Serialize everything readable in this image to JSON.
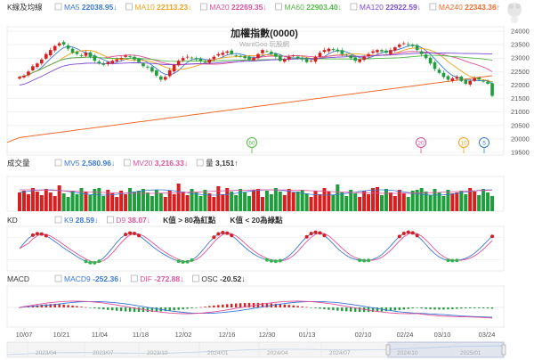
{
  "panels": {
    "price": {
      "title": "K線及均線",
      "chart_title": "加權指數(0000)",
      "watermark": "WantGoo 玩股網",
      "legend": [
        {
          "name": "MA5",
          "value": "22038.95↓",
          "color": "#3a78d4"
        },
        {
          "name": "MA10",
          "value": "22113.23↓",
          "color": "#f3a11a"
        },
        {
          "name": "MA20",
          "value": "22269.35↓",
          "color": "#e0509a"
        },
        {
          "name": "MA60",
          "value": "22903.40↓",
          "color": "#54b848"
        },
        {
          "name": "MA120",
          "value": "22922.59↓",
          "color": "#7a4bd0"
        },
        {
          "name": "MA240",
          "value": "22343.36↑",
          "color": "#f06b2d"
        }
      ],
      "y_ticks": [
        "24000",
        "23500",
        "23000",
        "22500",
        "22000",
        "21500",
        "21000",
        "20500",
        "20000",
        "19500"
      ],
      "markers": [
        "60",
        "20",
        "10",
        "5"
      ]
    },
    "volume": {
      "title": "成交量",
      "legend": [
        {
          "name": "MV5",
          "value": "2,580.96↓",
          "color": "#3a78d4"
        },
        {
          "name": "MV20",
          "value": "3,216.33↓",
          "color": "#e0509a"
        },
        {
          "name": "量",
          "value": "3,151↑",
          "color": "#333333"
        }
      ]
    },
    "kd": {
      "title": "KD",
      "legend": [
        {
          "name": "K9",
          "value": "28.59↓",
          "color": "#3a78d4"
        },
        {
          "name": "D9",
          "value": "38.07↓",
          "color": "#e0509a"
        }
      ],
      "notes": [
        "K值 > 80為紅點",
        "K值 < 20為綠點"
      ]
    },
    "macd": {
      "title": "MACD",
      "legend": [
        {
          "name": "MACD9",
          "value": "-252.36↓",
          "color": "#3a78d4"
        },
        {
          "name": "DIF",
          "value": "-272.88↓",
          "color": "#e0509a"
        },
        {
          "name": "OSC",
          "value": "-20.52↓",
          "color": "#333333"
        }
      ]
    }
  },
  "x_ticks": [
    "10/07",
    "10/21",
    "11/04",
    "11/18",
    "12/02",
    "12/16",
    "12/30",
    "01/13",
    "02/10",
    "02/24",
    "03/10",
    "03/24"
  ],
  "navigator_ticks": [
    "2023/04",
    "2023/07",
    "2023/10",
    "2024/01",
    "2024/04",
    "2024/07",
    "2024/10",
    "2025/01"
  ],
  "colors": {
    "up": "#d81e1e",
    "down": "#1e9e3c",
    "ma5": "#3a78d4",
    "ma10": "#f3a11a",
    "ma20": "#e0509a",
    "ma60": "#54b848",
    "ma120": "#7a4bd0",
    "ma240": "#f06b2d"
  },
  "chart_data": {
    "type": "candlestick",
    "title": "加權指數(0000)",
    "series_close": [
      22300,
      22350,
      22500,
      22700,
      22800,
      22950,
      23150,
      23300,
      23450,
      23550,
      23500,
      23350,
      23200,
      23150,
      23100,
      23200,
      23050,
      22900,
      22800,
      22750,
      22850,
      22900,
      22950,
      23000,
      23100,
      23050,
      22950,
      22850,
      22700,
      22650,
      22500,
      22350,
      22200,
      22300,
      22550,
      22750,
      22900,
      23000,
      23050,
      23000,
      22950,
      22900,
      22850,
      22950,
      23050,
      23150,
      23200,
      23250,
      23150,
      23100,
      23050,
      23000,
      22950,
      23000,
      23150,
      23300,
      23250,
      23150,
      23050,
      22900,
      22950,
      23050,
      23100,
      23000,
      22950,
      22850,
      22900,
      23050,
      23200,
      23300,
      23350,
      23300,
      23250,
      23150,
      23100,
      23000,
      22900,
      22950,
      23050,
      23150,
      23250,
      23300,
      23250,
      23200,
      23300,
      23400,
      23500,
      23550,
      23500,
      23450,
      23300,
      23150,
      23000,
      22800,
      22600,
      22450,
      22300,
      22200,
      22250,
      22300,
      22150,
      22050,
      22150,
      22250,
      22200,
      22150,
      22050,
      21600
    ],
    "ylim": [
      19500,
      24000
    ]
  }
}
